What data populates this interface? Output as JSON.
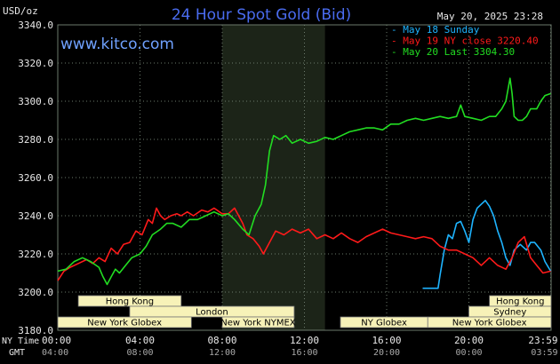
{
  "header": {
    "title": "24 Hour Spot Gold (Bid)",
    "timestamp": "May 20, 2025 23:28",
    "watermark": "www.kitco.com",
    "y_unit": "USD/oz"
  },
  "colors": {
    "background": "#000000",
    "plot_background": "#000000",
    "night_shade": "#1c2418",
    "grid": "#6c7a6c",
    "title": "#4a6cf0",
    "watermark": "#6fa1ff",
    "sunday": "#1eb4ff",
    "close": "#ff1a1a",
    "last": "#22dd22",
    "session_fill": "#f7f2b8",
    "session_text": "#000000",
    "axis_text": "#e8e8e8"
  },
  "legend": [
    {
      "marker": "-",
      "label": "May 18 Sunday",
      "color_key": "sunday"
    },
    {
      "marker": "-",
      "label": "May 19 NY close 3220.40",
      "color_key": "close"
    },
    {
      "marker": "-",
      "label": "May 20 Last 3304.30",
      "color_key": "last"
    }
  ],
  "x_axis": {
    "ny_label": "NY Time",
    "gmt_label": "GMT",
    "ny_ticks": [
      "00:00",
      "04:00",
      "08:00",
      "12:00",
      "16:00",
      "20:00",
      "23:59"
    ],
    "gmt_ticks": [
      "04:00",
      "08:00",
      "12:00",
      "16:00",
      "20:00",
      "00:00",
      "03:59"
    ]
  },
  "sessions": [
    {
      "label": "Hong Kong",
      "start_h": 1.0,
      "end_h": 6.0
    },
    {
      "label": "London",
      "start_h": 3.5,
      "end_h": 11.5
    },
    {
      "label": "New York Globex",
      "start_h": 0.0,
      "end_h": 6.5
    },
    {
      "label": "New York NYMEX",
      "start_h": 8.0,
      "end_h": 11.5
    },
    {
      "label": "NY Globex",
      "start_h": 13.75,
      "end_h": 18.0
    },
    {
      "label": "Hong Kong",
      "start_h": 21.0,
      "end_h": 24.0
    },
    {
      "label": "Sydney",
      "start_h": 20.0,
      "end_h": 24.0
    },
    {
      "label": "New York Globex",
      "start_h": 18.0,
      "end_h": 24.0
    }
  ],
  "chart_data": {
    "type": "line",
    "title": "24 Hour Spot Gold (Bid)",
    "ylabel": "USD/oz",
    "ylim": [
      3180,
      3340
    ],
    "xlim": [
      0,
      24
    ],
    "y_ticks": [
      "3180.0",
      "3200.0",
      "3220.0",
      "3240.0",
      "3260.0",
      "3280.0",
      "3300.0",
      "3320.0",
      "3340.0"
    ],
    "y_tick_values": [
      3180,
      3200,
      3220,
      3240,
      3260,
      3280,
      3300,
      3320,
      3340
    ],
    "x_tick_hours": [
      0,
      4,
      8,
      12,
      16,
      20,
      23.98
    ],
    "shaded_hours": [
      8.0,
      13.0
    ],
    "grid": true,
    "legend_position": "top-right",
    "series": [
      {
        "name": "May 18 Sunday",
        "color_key": "sunday",
        "points": [
          [
            17.75,
            3202
          ],
          [
            18.5,
            3202
          ],
          [
            18.6,
            3209
          ],
          [
            18.8,
            3222
          ],
          [
            19.0,
            3230
          ],
          [
            19.2,
            3228
          ],
          [
            19.4,
            3236
          ],
          [
            19.6,
            3237
          ],
          [
            19.8,
            3232
          ],
          [
            20.0,
            3226
          ],
          [
            20.2,
            3238
          ],
          [
            20.4,
            3244
          ],
          [
            20.6,
            3246
          ],
          [
            20.8,
            3248
          ],
          [
            21.0,
            3245
          ],
          [
            21.2,
            3240
          ],
          [
            21.4,
            3232
          ],
          [
            21.6,
            3226
          ],
          [
            21.8,
            3218
          ],
          [
            22.0,
            3214
          ],
          [
            22.2,
            3222
          ],
          [
            22.5,
            3225
          ],
          [
            22.8,
            3222
          ],
          [
            23.0,
            3226
          ],
          [
            23.2,
            3226
          ],
          [
            23.5,
            3222
          ],
          [
            23.7,
            3216
          ],
          [
            23.98,
            3211
          ]
        ]
      },
      {
        "name": "May 19 NY close 3220.40",
        "color_key": "close",
        "points": [
          [
            0.0,
            3206
          ],
          [
            0.3,
            3211
          ],
          [
            0.6,
            3213
          ],
          [
            1.0,
            3215
          ],
          [
            1.4,
            3217
          ],
          [
            1.7,
            3215
          ],
          [
            2.0,
            3218
          ],
          [
            2.3,
            3216
          ],
          [
            2.6,
            3223
          ],
          [
            2.9,
            3220
          ],
          [
            3.2,
            3225
          ],
          [
            3.5,
            3226
          ],
          [
            3.8,
            3232
          ],
          [
            4.1,
            3230
          ],
          [
            4.4,
            3238
          ],
          [
            4.6,
            3236
          ],
          [
            4.8,
            3244
          ],
          [
            5.0,
            3240
          ],
          [
            5.2,
            3238
          ],
          [
            5.5,
            3240
          ],
          [
            5.8,
            3241
          ],
          [
            6.0,
            3240
          ],
          [
            6.3,
            3242
          ],
          [
            6.6,
            3240
          ],
          [
            7.0,
            3243
          ],
          [
            7.3,
            3242
          ],
          [
            7.6,
            3244
          ],
          [
            8.0,
            3241
          ],
          [
            8.3,
            3241
          ],
          [
            8.6,
            3244
          ],
          [
            8.8,
            3240
          ],
          [
            9.0,
            3236
          ],
          [
            9.2,
            3230
          ],
          [
            9.5,
            3228
          ],
          [
            9.8,
            3224
          ],
          [
            10.0,
            3220
          ],
          [
            10.3,
            3226
          ],
          [
            10.6,
            3232
          ],
          [
            11.0,
            3230
          ],
          [
            11.4,
            3233
          ],
          [
            11.8,
            3231
          ],
          [
            12.2,
            3233
          ],
          [
            12.6,
            3228
          ],
          [
            13.0,
            3230
          ],
          [
            13.4,
            3228
          ],
          [
            13.8,
            3231
          ],
          [
            14.2,
            3228
          ],
          [
            14.6,
            3226
          ],
          [
            15.0,
            3229
          ],
          [
            15.4,
            3231
          ],
          [
            15.8,
            3233
          ],
          [
            16.2,
            3231
          ],
          [
            16.6,
            3230
          ],
          [
            17.0,
            3229
          ],
          [
            17.4,
            3228
          ],
          [
            17.8,
            3229
          ],
          [
            18.2,
            3228
          ],
          [
            18.6,
            3224
          ],
          [
            19.0,
            3222
          ],
          [
            19.4,
            3222
          ],
          [
            19.8,
            3220
          ],
          [
            20.2,
            3218
          ],
          [
            20.6,
            3214
          ],
          [
            21.0,
            3218
          ],
          [
            21.4,
            3214
          ],
          [
            21.8,
            3212
          ],
          [
            22.1,
            3218
          ],
          [
            22.4,
            3226
          ],
          [
            22.7,
            3229
          ],
          [
            23.0,
            3218
          ],
          [
            23.3,
            3214
          ],
          [
            23.6,
            3210
          ],
          [
            23.98,
            3211
          ]
        ]
      },
      {
        "name": "May 20 Last 3304.30",
        "color_key": "last",
        "points": [
          [
            0.0,
            3211
          ],
          [
            0.4,
            3212
          ],
          [
            0.8,
            3216
          ],
          [
            1.2,
            3218
          ],
          [
            1.6,
            3216
          ],
          [
            2.0,
            3213
          ],
          [
            2.2,
            3208
          ],
          [
            2.4,
            3204
          ],
          [
            2.6,
            3208
          ],
          [
            2.8,
            3212
          ],
          [
            3.0,
            3210
          ],
          [
            3.3,
            3214
          ],
          [
            3.6,
            3218
          ],
          [
            4.0,
            3220
          ],
          [
            4.3,
            3224
          ],
          [
            4.6,
            3230
          ],
          [
            5.0,
            3233
          ],
          [
            5.3,
            3236
          ],
          [
            5.6,
            3236
          ],
          [
            6.0,
            3234
          ],
          [
            6.4,
            3238
          ],
          [
            6.8,
            3238
          ],
          [
            7.2,
            3240
          ],
          [
            7.6,
            3242
          ],
          [
            8.0,
            3240
          ],
          [
            8.3,
            3241
          ],
          [
            8.6,
            3238
          ],
          [
            9.0,
            3233
          ],
          [
            9.3,
            3230
          ],
          [
            9.6,
            3240
          ],
          [
            9.9,
            3246
          ],
          [
            10.1,
            3256
          ],
          [
            10.3,
            3274
          ],
          [
            10.5,
            3282
          ],
          [
            10.8,
            3280
          ],
          [
            11.1,
            3282
          ],
          [
            11.4,
            3278
          ],
          [
            11.8,
            3280
          ],
          [
            12.2,
            3278
          ],
          [
            12.6,
            3279
          ],
          [
            13.0,
            3281
          ],
          [
            13.4,
            3280
          ],
          [
            13.8,
            3282
          ],
          [
            14.2,
            3284
          ],
          [
            14.6,
            3285
          ],
          [
            15.0,
            3286
          ],
          [
            15.4,
            3286
          ],
          [
            15.8,
            3285
          ],
          [
            16.2,
            3288
          ],
          [
            16.6,
            3288
          ],
          [
            17.0,
            3290
          ],
          [
            17.4,
            3291
          ],
          [
            17.8,
            3290
          ],
          [
            18.2,
            3291
          ],
          [
            18.6,
            3292
          ],
          [
            19.0,
            3291
          ],
          [
            19.4,
            3292
          ],
          [
            19.6,
            3298
          ],
          [
            19.8,
            3292
          ],
          [
            20.2,
            3291
          ],
          [
            20.6,
            3290
          ],
          [
            21.0,
            3292
          ],
          [
            21.3,
            3292
          ],
          [
            21.6,
            3296
          ],
          [
            21.8,
            3300
          ],
          [
            22.0,
            3312
          ],
          [
            22.1,
            3304
          ],
          [
            22.2,
            3292
          ],
          [
            22.4,
            3290
          ],
          [
            22.6,
            3290
          ],
          [
            22.8,
            3292
          ],
          [
            23.0,
            3296
          ],
          [
            23.3,
            3296
          ],
          [
            23.5,
            3300
          ],
          [
            23.7,
            3303
          ],
          [
            23.98,
            3304
          ]
        ]
      }
    ]
  }
}
